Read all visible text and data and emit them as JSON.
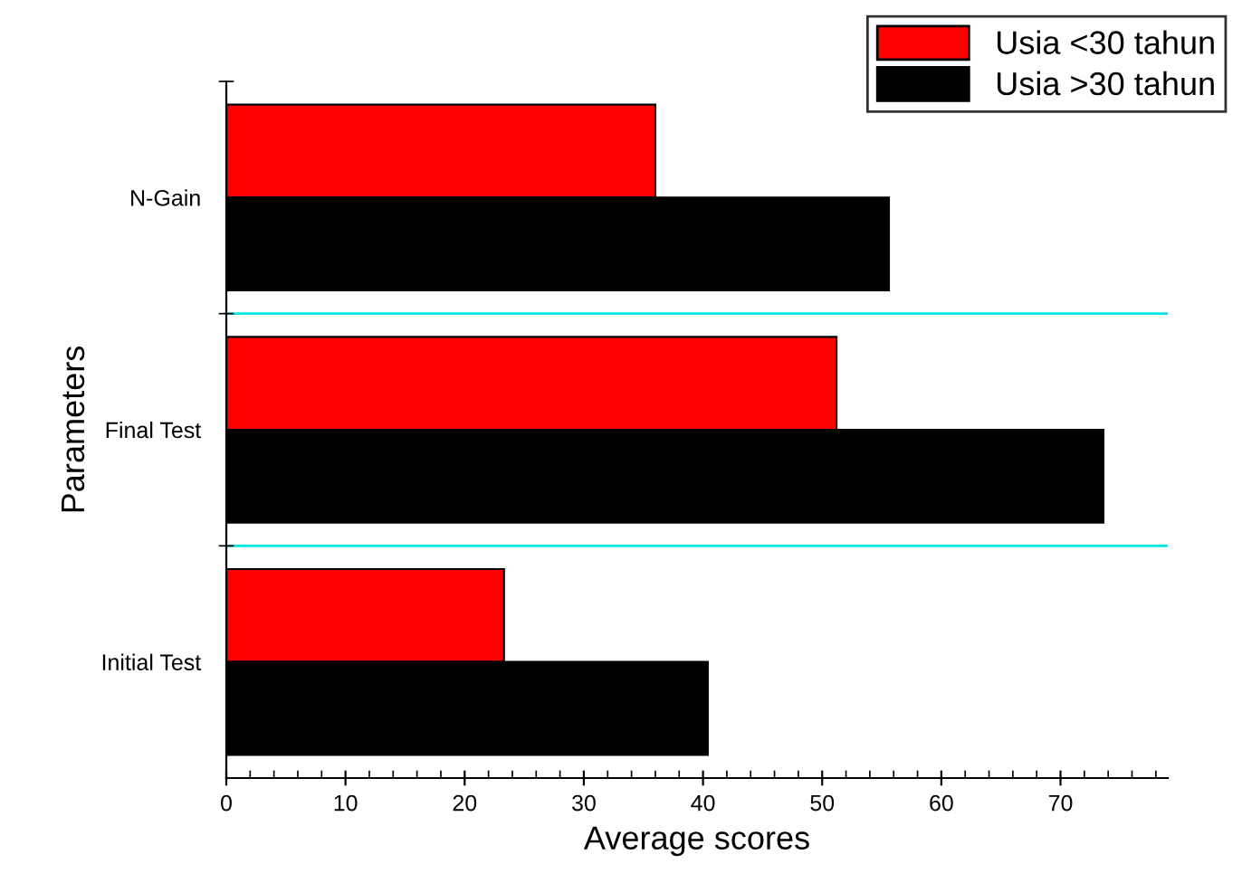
{
  "chart_data": {
    "type": "bar",
    "orientation": "horizontal",
    "xlabel": "Average scores",
    "ylabel": "Parameters",
    "categories": [
      "N-Gain",
      "Final Test",
      "Initial Test"
    ],
    "series": [
      {
        "name": "Usia <30 tahun",
        "color": "#ff0000",
        "values": [
          36.0,
          51.2,
          23.3
        ]
      },
      {
        "name": "Usia >30 tahun",
        "color": "#000000",
        "values": [
          55.6,
          73.6,
          40.4
        ]
      }
    ],
    "xlim": [
      0,
      79
    ],
    "xticks": [
      0,
      10,
      20,
      30,
      40,
      50,
      60,
      70
    ],
    "grid": "y",
    "legend": "top right"
  }
}
